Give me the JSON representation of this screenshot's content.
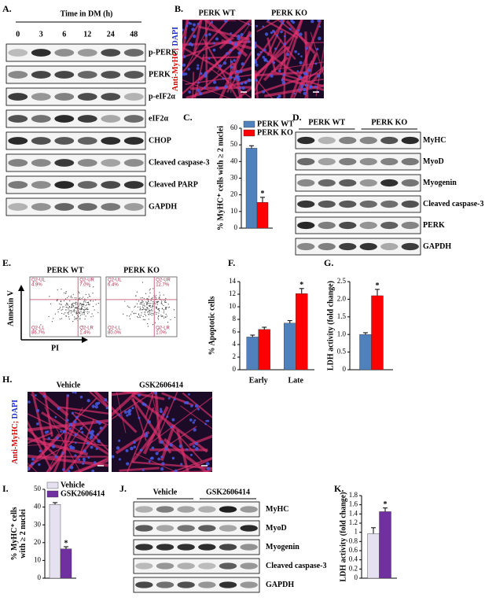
{
  "panel_labels": [
    "A.",
    "B.",
    "C.",
    "D.",
    "E.",
    "F.",
    "G.",
    "H.",
    "I.",
    "J.",
    "K."
  ],
  "blot_a": {
    "title": "Time in DM (h)",
    "lanes": [
      "0",
      "3",
      "6",
      "12",
      "24",
      "48"
    ],
    "rows": [
      "p-PERK",
      "PERK",
      "p-eIF2α",
      "eIF2α",
      "CHOP",
      "Cleaved caspase-3",
      "Cleaved PARP",
      "GAPDH"
    ]
  },
  "micrograph_b": {
    "columns": [
      "PERK WT",
      "PERK KO"
    ],
    "stain": [
      "Anti-MyHC;",
      "DAPI"
    ]
  },
  "blot_d": {
    "groups": [
      "PERK WT",
      "PERK KO"
    ],
    "rows": [
      "MyHC",
      "MyoD",
      "Myogenin",
      "Cleaved caspase-3",
      "PERK",
      "GAPDH"
    ]
  },
  "flow_e": {
    "ylabel": "Annexin V",
    "xlabel": "PI",
    "plots": [
      {
        "title": "PERK WT",
        "quadrants": [
          [
            "Q2-UL",
            "4.9%"
          ],
          [
            "Q2-UR",
            "7.0%"
          ],
          [
            "Q2-LL",
            "86.7%"
          ],
          [
            "Q2-LR",
            "1.4%"
          ]
        ]
      },
      {
        "title": "PERK KO",
        "quadrants": [
          [
            "Q2-UL",
            "6.4%"
          ],
          [
            "Q2-UR",
            "12.7%"
          ],
          [
            "Q2-LL",
            "80.0%"
          ],
          [
            "Q2-LR",
            "1.0%"
          ]
        ]
      }
    ]
  },
  "micrograph_h": {
    "columns": [
      "Vehicle",
      "GSK2606414"
    ],
    "stain": [
      "Anti-MyHC;",
      "DAPI"
    ]
  },
  "blot_j": {
    "groups": [
      "Vehicle",
      "GSK2606414"
    ],
    "rows": [
      "MyHC",
      "MyoD",
      "Myogenin",
      "Cleaved caspase-3",
      "GAPDH"
    ]
  },
  "chart_data": [
    {
      "type": "bar",
      "ylabel": "% MyHC⁺ cells with ≥ 2 nuclei",
      "ylim": [
        0,
        60
      ],
      "yticks": [
        0,
        10,
        20,
        30,
        40,
        50,
        60
      ],
      "legend": "upper left",
      "annotation": "*",
      "series": [
        {
          "name": "PERK WT",
          "color": "#4f81bd",
          "values": [
            48
          ],
          "errors": [
            1.5
          ]
        },
        {
          "name": "PERK KO",
          "color": "#ff0000",
          "values": [
            15.5
          ],
          "errors": [
            3
          ]
        }
      ]
    },
    {
      "type": "bar",
      "ylabel": "% Apoptotic cells",
      "categories": [
        "Early",
        "Late"
      ],
      "ylim": [
        0,
        14
      ],
      "yticks": [
        0,
        2,
        4,
        6,
        8,
        10,
        12,
        14
      ],
      "annotation": "*",
      "series": [
        {
          "color": "#4f81bd",
          "values": [
            5.2,
            7.4
          ],
          "errors": [
            0.3,
            0.4
          ]
        },
        {
          "color": "#ff0000",
          "values": [
            6.4,
            12.1
          ],
          "errors": [
            0.35,
            0.8
          ]
        }
      ]
    },
    {
      "type": "bar",
      "ylabel": "LDH activity (fold change)",
      "ylim": [
        0,
        2.5
      ],
      "yticks": [
        0,
        0.5,
        {
          "value": 1,
          "label": "1.0"
        },
        1.5,
        {
          "value": 2,
          "label": "2.0"
        },
        2.5
      ],
      "annotation": "*",
      "series": [
        {
          "color": "#4f81bd",
          "values": [
            1.0
          ],
          "errors": [
            0.05
          ]
        },
        {
          "color": "#ff0000",
          "values": [
            2.1
          ],
          "errors": [
            0.18
          ]
        }
      ]
    },
    {
      "type": "bar",
      "ylabel": [
        "% MyHC⁺ cells",
        "with ≥ 2 nuclei"
      ],
      "ylim": [
        0,
        50
      ],
      "yticks": [
        0,
        10,
        20,
        30,
        40,
        50
      ],
      "legend": "upper left",
      "annotation": "*",
      "series": [
        {
          "name": "Vehicle",
          "color": "#e6e1f0",
          "values": [
            41.5
          ],
          "errors": [
            1
          ]
        },
        {
          "name": "GSK2606414",
          "color": "#7030a0",
          "values": [
            16.5
          ],
          "errors": [
            1.2
          ]
        }
      ]
    },
    {
      "type": "bar",
      "ylabel": "LDH activity (fold change)",
      "ylim": [
        0,
        1.8
      ],
      "yticks": [
        0,
        0.2,
        0.4,
        0.6,
        0.8,
        1,
        1.2,
        1.4,
        1.6,
        1.8
      ],
      "annotation": "*",
      "series": [
        {
          "color": "#e6e1f0",
          "values": [
            0.97
          ],
          "errors": [
            0.13
          ]
        },
        {
          "color": "#7030a0",
          "values": [
            1.45
          ],
          "errors": [
            0.08
          ]
        }
      ]
    }
  ]
}
